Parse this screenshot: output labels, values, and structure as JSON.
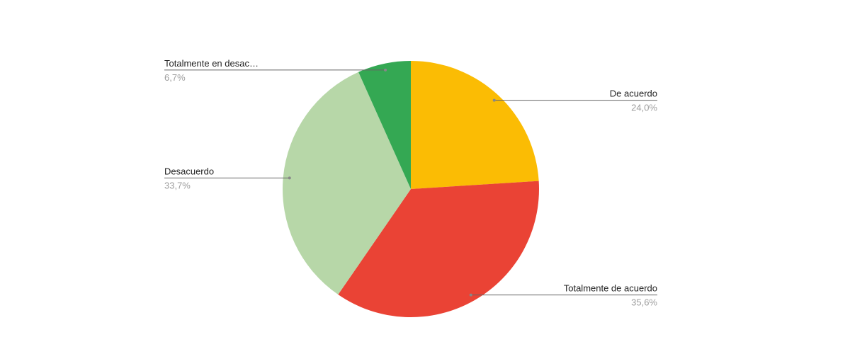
{
  "chart_data": {
    "type": "pie",
    "categories": [
      "De acuerdo",
      "Totalmente de acuerdo",
      "Desacuerdo",
      "Totalmente en desac…"
    ],
    "values": [
      24.0,
      35.6,
      33.7,
      6.7
    ],
    "value_labels": [
      "24,0%",
      "35,6%",
      "33,7%",
      "6,7%"
    ],
    "colors": [
      "#fbbc04",
      "#ea4335",
      "#b7d7a8",
      "#34a853"
    ]
  }
}
